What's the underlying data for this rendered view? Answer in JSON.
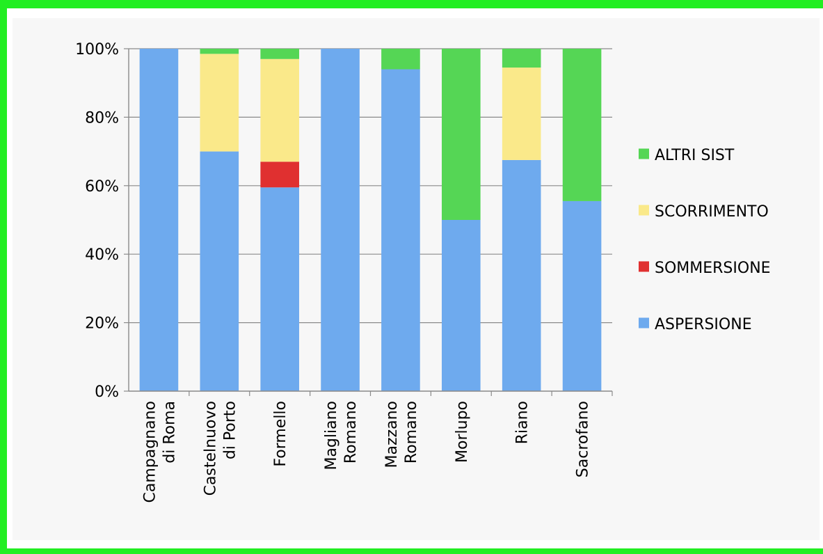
{
  "chart_data": {
    "type": "bar",
    "stacked": true,
    "categories": [
      [
        "Campagnano",
        "di Roma"
      ],
      [
        "Castelnuovo",
        "di Porto"
      ],
      [
        "Formello"
      ],
      [
        "Magliano",
        "Romano"
      ],
      [
        "Mazzano",
        "Romano"
      ],
      [
        "Morlupo"
      ],
      [
        "Riano"
      ],
      [
        "Sacrofano"
      ]
    ],
    "series": [
      {
        "name": "ASPERSIONE",
        "color": "#6eaaee",
        "values": [
          100,
          70,
          59.5,
          100,
          94,
          50,
          67.5,
          55.5
        ]
      },
      {
        "name": "SOMMERSIONE",
        "color": "#e03030",
        "values": [
          0,
          0,
          7.5,
          0,
          0,
          0,
          0,
          0
        ]
      },
      {
        "name": "SCORRIMENTO",
        "color": "#fae98a",
        "values": [
          0,
          28.5,
          30,
          0,
          0,
          0,
          27,
          0
        ]
      },
      {
        "name": "ALTRI SIST",
        "color": "#55d655",
        "values": [
          0,
          1.5,
          3,
          0,
          6,
          50,
          5.5,
          44.5
        ]
      }
    ],
    "y_ticks": [
      "0%",
      "20%",
      "40%",
      "60%",
      "80%",
      "100%"
    ],
    "ylim": [
      0,
      100
    ],
    "legend_order": [
      "ALTRI SIST",
      "SCORRIMENTO",
      "SOMMERSIONE",
      "ASPERSIONE"
    ],
    "legend_position": "right",
    "grid": true
  }
}
